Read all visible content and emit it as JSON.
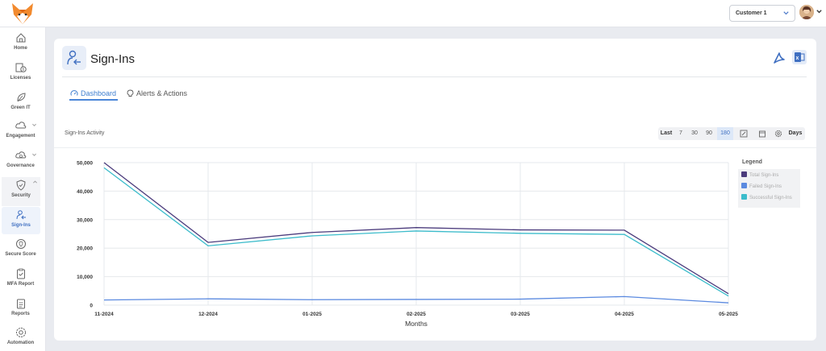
{
  "topbar": {
    "customer_value": "Customer 1"
  },
  "sidebar": {
    "items": [
      {
        "label": "Home"
      },
      {
        "label": "Licenses"
      },
      {
        "label": "Green IT"
      },
      {
        "label": "Engagement"
      },
      {
        "label": "Governance"
      },
      {
        "label": "Security"
      },
      {
        "label": "Sign-Ins"
      },
      {
        "label": "Secure Score"
      },
      {
        "label": "MFA Report"
      },
      {
        "label": "Reports"
      },
      {
        "label": "Automation"
      }
    ]
  },
  "header": {
    "title": "Sign-Ins",
    "tabs": [
      {
        "label": "Dashboard"
      },
      {
        "label": "Alerts & Actions"
      }
    ]
  },
  "chart_card": {
    "title": "Sign-Ins Activity",
    "range": {
      "last_label": "Last",
      "options": [
        "7",
        "30",
        "90",
        "180"
      ],
      "selected": "180",
      "days_label": "Days"
    }
  },
  "chart_data": {
    "type": "line",
    "title": "",
    "xlabel": "Months",
    "ylabel": "",
    "x": [
      "11-2024",
      "12-2024",
      "01-2025",
      "02-2025",
      "03-2025",
      "04-2025",
      "05-2025"
    ],
    "yticks": [
      "0",
      "10,000",
      "20,000",
      "30,000",
      "40,000",
      "50,000"
    ],
    "ylim": [
      0,
      50000
    ],
    "legend_title": "Legend",
    "series": [
      {
        "name": "Total Sign-Ins",
        "color": "#4b3b7c",
        "values": [
          50000,
          22000,
          25500,
          27200,
          26400,
          26300,
          4000
        ]
      },
      {
        "name": "Failed Sign-Ins",
        "color": "#5b8ae0",
        "values": [
          1800,
          2200,
          1900,
          2000,
          2100,
          3000,
          800
        ]
      },
      {
        "name": "Successful Sign-Ins",
        "color": "#3bbccb",
        "values": [
          48200,
          20800,
          24300,
          26000,
          25200,
          24800,
          3200
        ]
      }
    ]
  }
}
